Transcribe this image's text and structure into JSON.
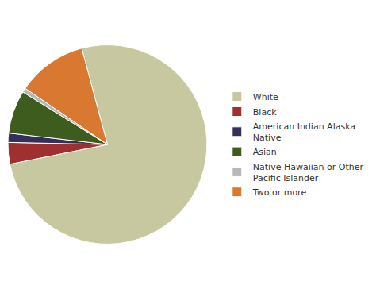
{
  "chart_data": {
    "type": "pie",
    "categories": [
      "White",
      "Black",
      "American Indian Alaska\nNative",
      "Asian",
      "Native Hawaiian or Other\nPacific Islander",
      "Two or more"
    ],
    "values": [
      76.0,
      3.5,
      1.5,
      7.0,
      0.7,
      11.3
    ],
    "colors": [
      "#c8c8a0",
      "#9e3030",
      "#35305a",
      "#3d5c1e",
      "#b8b8b8",
      "#d97830"
    ],
    "legend": "right",
    "data_labels": false
  }
}
